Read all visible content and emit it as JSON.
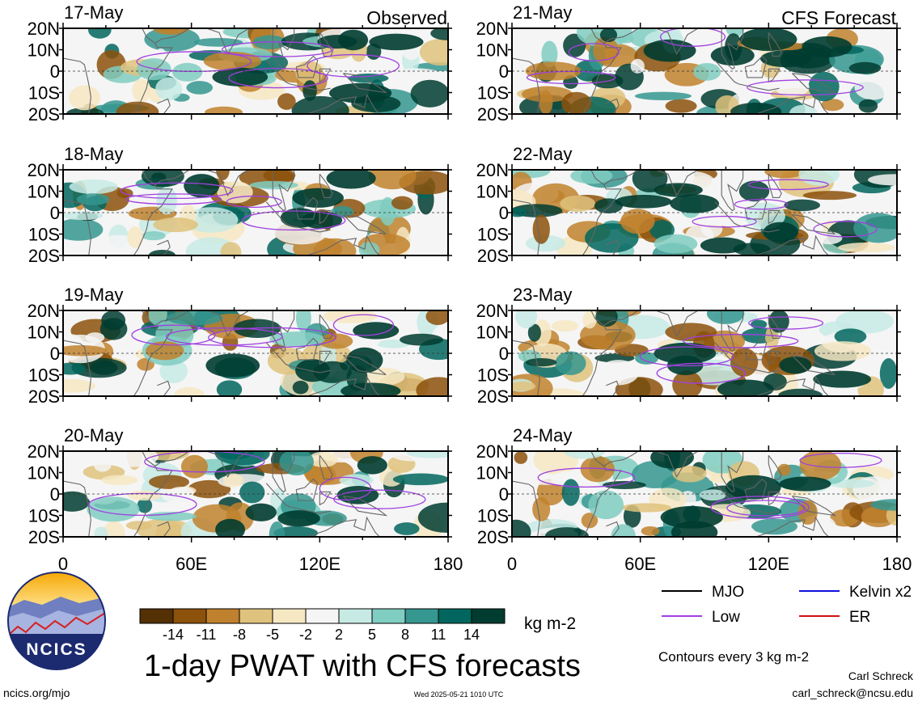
{
  "figure": {
    "title": "1-day PWAT with CFS forecasts",
    "left_column_label": "Observed",
    "right_column_label": "CFS Forecast",
    "colorbar_unit": "kg m-2",
    "contour_note": "Contours every 3 kg m-2",
    "author": "Carl Schreck",
    "email": "carl_schreck@ncsu.edu",
    "site": "ncics.org/mjo",
    "timestamp": "Wed 2025-05-21 1010 UTC",
    "logo_text": "NCICS"
  },
  "legend": [
    {
      "label": "MJO",
      "color": "#000000"
    },
    {
      "label": "Kelvin x2",
      "color": "#1010e0"
    },
    {
      "label": "Low",
      "color": "#a040e0"
    },
    {
      "label": "ER",
      "color": "#d01010"
    }
  ],
  "colorbar": {
    "ticks": [
      "-14",
      "-11",
      "-8",
      "-5",
      "-2",
      "2",
      "5",
      "8",
      "11",
      "14"
    ],
    "colors": [
      "#543005",
      "#8c510a",
      "#bf812d",
      "#dfc27d",
      "#f6e8c3",
      "#f5f5f5",
      "#c7eae5",
      "#80cdc1",
      "#35978f",
      "#01665e",
      "#003c30"
    ]
  },
  "chart_data": {
    "type": "heatmap",
    "variable": "1-day PWAT anomaly",
    "unit": "kg m-2",
    "xlim": [
      0,
      180
    ],
    "ylim": [
      -20,
      20
    ],
    "x_ticks": [
      "0",
      "60E",
      "120E",
      "180"
    ],
    "y_ticks": [
      "20N",
      "10N",
      "0",
      "10S",
      "20S"
    ],
    "panels": [
      {
        "date": "17-May",
        "source": "Observed",
        "seed": 11
      },
      {
        "date": "18-May",
        "source": "Observed",
        "seed": 23
      },
      {
        "date": "19-May",
        "source": "Observed",
        "seed": 37
      },
      {
        "date": "20-May",
        "source": "Observed",
        "seed": 41
      },
      {
        "date": "21-May",
        "source": "CFS Forecast",
        "seed": 53
      },
      {
        "date": "22-May",
        "source": "CFS Forecast",
        "seed": 67
      },
      {
        "date": "23-May",
        "source": "CFS Forecast",
        "seed": 79
      },
      {
        "date": "24-May",
        "source": "CFS Forecast",
        "seed": 83
      }
    ]
  }
}
